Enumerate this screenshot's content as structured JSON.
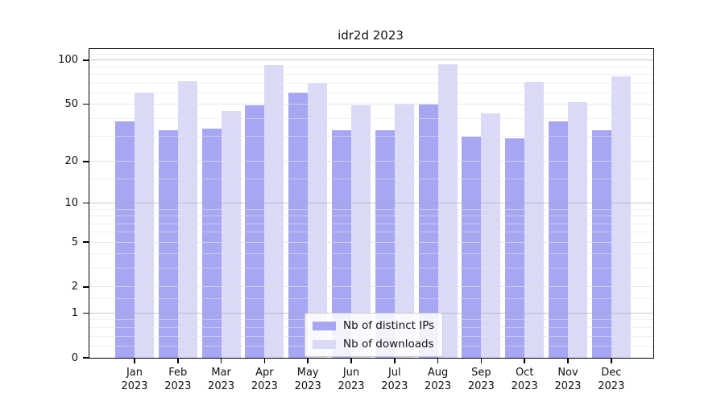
{
  "chart_data": {
    "type": "bar",
    "title": "idr2d 2023",
    "categories": [
      {
        "month": "Jan",
        "year": "2023"
      },
      {
        "month": "Feb",
        "year": "2023"
      },
      {
        "month": "Mar",
        "year": "2023"
      },
      {
        "month": "Apr",
        "year": "2023"
      },
      {
        "month": "May",
        "year": "2023"
      },
      {
        "month": "Jun",
        "year": "2023"
      },
      {
        "month": "Jul",
        "year": "2023"
      },
      {
        "month": "Aug",
        "year": "2023"
      },
      {
        "month": "Sep",
        "year": "2023"
      },
      {
        "month": "Oct",
        "year": "2023"
      },
      {
        "month": "Nov",
        "year": "2023"
      },
      {
        "month": "Dec",
        "year": "2023"
      }
    ],
    "series": [
      {
        "name": "Nb of distinct IPs",
        "color": "#a6a6f2",
        "values": [
          38,
          33,
          34,
          49,
          60,
          33,
          33,
          50,
          30,
          29,
          38,
          33
        ]
      },
      {
        "name": "Nb of downloads",
        "color": "#dadaf7",
        "values": [
          60,
          72,
          45,
          92,
          70,
          49,
          50,
          94,
          43,
          71,
          52,
          78
        ]
      }
    ],
    "yscale": "log1p",
    "ylim": [
      0,
      119
    ],
    "yticks": [
      0,
      1,
      2,
      5,
      10,
      20,
      50,
      100
    ],
    "power_gridlines": [
      1,
      10,
      100
    ],
    "minor_gridlines": [
      0.2,
      0.4,
      0.6,
      0.8,
      1.5,
      3,
      4,
      6,
      7,
      8,
      9,
      15,
      30,
      40,
      60,
      70,
      80,
      90,
      110
    ],
    "legend": {
      "position": "lower center"
    },
    "grid": "horizontal"
  }
}
